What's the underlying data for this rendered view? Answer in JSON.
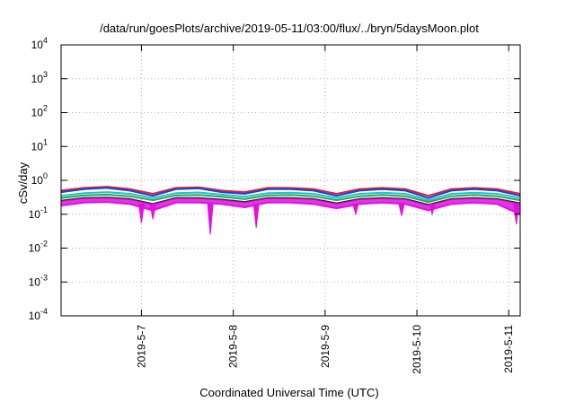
{
  "chart_data": {
    "type": "line",
    "title": "/data/run/goesPlots/archive/2019-05-11/03:00/flux/../bryn/5daysMoon.plot",
    "xlabel": "Coordinated Universal Time (UTC)",
    "ylabel": "cSv/day",
    "yscale": "log",
    "ylim": [
      0.0001,
      10000
    ],
    "xlim": [
      "2019-05-06 03:00",
      "2019-05-11 03:00"
    ],
    "grid": true,
    "y_ticks": [
      {
        "base": "10",
        "exp": "-4",
        "value": 0.0001
      },
      {
        "base": "10",
        "exp": "-3",
        "value": 0.001
      },
      {
        "base": "10",
        "exp": "-2",
        "value": 0.01
      },
      {
        "base": "10",
        "exp": "-1",
        "value": 0.1
      },
      {
        "base": "10",
        "exp": "0",
        "value": 1
      },
      {
        "base": "10",
        "exp": "1",
        "value": 10
      },
      {
        "base": "10",
        "exp": "2",
        "value": 100
      },
      {
        "base": "10",
        "exp": "3",
        "value": 1000
      },
      {
        "base": "10",
        "exp": "4",
        "value": 10000
      }
    ],
    "x_ticks": [
      {
        "label": "2019-5-7",
        "value": "2019-05-07 00:00"
      },
      {
        "label": "2019-5-8",
        "value": "2019-05-08 00:00"
      },
      {
        "label": "2019-5-9",
        "value": "2019-05-09 00:00"
      },
      {
        "label": "2019-5-10",
        "value": "2019-05-10 00:00"
      },
      {
        "label": "2019-5-11",
        "value": "2019-05-11 00:00"
      }
    ],
    "x_hours": [
      0,
      6,
      12,
      18,
      24,
      30,
      36,
      42,
      48,
      54,
      60,
      66,
      72,
      78,
      84,
      90,
      96,
      102,
      108,
      114,
      120
    ],
    "series": [
      {
        "color": "#e0202e",
        "values": [
          0.5,
          0.6,
          0.65,
          0.55,
          0.4,
          0.6,
          0.62,
          0.5,
          0.45,
          0.6,
          0.6,
          0.55,
          0.4,
          0.55,
          0.6,
          0.55,
          0.35,
          0.55,
          0.6,
          0.55,
          0.4
        ]
      },
      {
        "color": "#2040d0",
        "values": [
          0.45,
          0.55,
          0.6,
          0.5,
          0.35,
          0.55,
          0.58,
          0.45,
          0.4,
          0.55,
          0.55,
          0.5,
          0.35,
          0.5,
          0.55,
          0.5,
          0.3,
          0.5,
          0.55,
          0.5,
          0.35
        ]
      },
      {
        "color": "#20c0e0",
        "values": [
          0.35,
          0.42,
          0.45,
          0.4,
          0.3,
          0.42,
          0.44,
          0.38,
          0.33,
          0.42,
          0.43,
          0.4,
          0.3,
          0.4,
          0.43,
          0.4,
          0.26,
          0.4,
          0.43,
          0.4,
          0.3
        ]
      },
      {
        "color": "#20b040",
        "values": [
          0.3,
          0.36,
          0.38,
          0.34,
          0.26,
          0.36,
          0.37,
          0.33,
          0.28,
          0.36,
          0.37,
          0.34,
          0.26,
          0.34,
          0.37,
          0.34,
          0.23,
          0.34,
          0.37,
          0.34,
          0.26
        ]
      },
      {
        "color": "#202020",
        "values": [
          0.25,
          0.3,
          0.31,
          0.28,
          0.2,
          0.3,
          0.3,
          0.27,
          0.23,
          0.3,
          0.3,
          0.28,
          0.21,
          0.28,
          0.3,
          0.28,
          0.19,
          0.28,
          0.3,
          0.28,
          0.21
        ]
      },
      {
        "color": "#e010e0",
        "values": [
          0.18,
          0.22,
          0.23,
          0.2,
          0.13,
          0.22,
          0.22,
          0.2,
          0.16,
          0.22,
          0.22,
          0.2,
          0.15,
          0.2,
          0.22,
          0.2,
          0.13,
          0.2,
          0.22,
          0.2,
          0.1
        ]
      }
    ],
    "dips": [
      {
        "hour": 21,
        "value": 0.055
      },
      {
        "hour": 24,
        "value": 0.07
      },
      {
        "hour": 39,
        "value": 0.025
      },
      {
        "hour": 51,
        "value": 0.04
      },
      {
        "hour": 77,
        "value": 0.1
      },
      {
        "hour": 89,
        "value": 0.09
      },
      {
        "hour": 97,
        "value": 0.1
      },
      {
        "hour": 119,
        "value": 0.05
      }
    ]
  }
}
